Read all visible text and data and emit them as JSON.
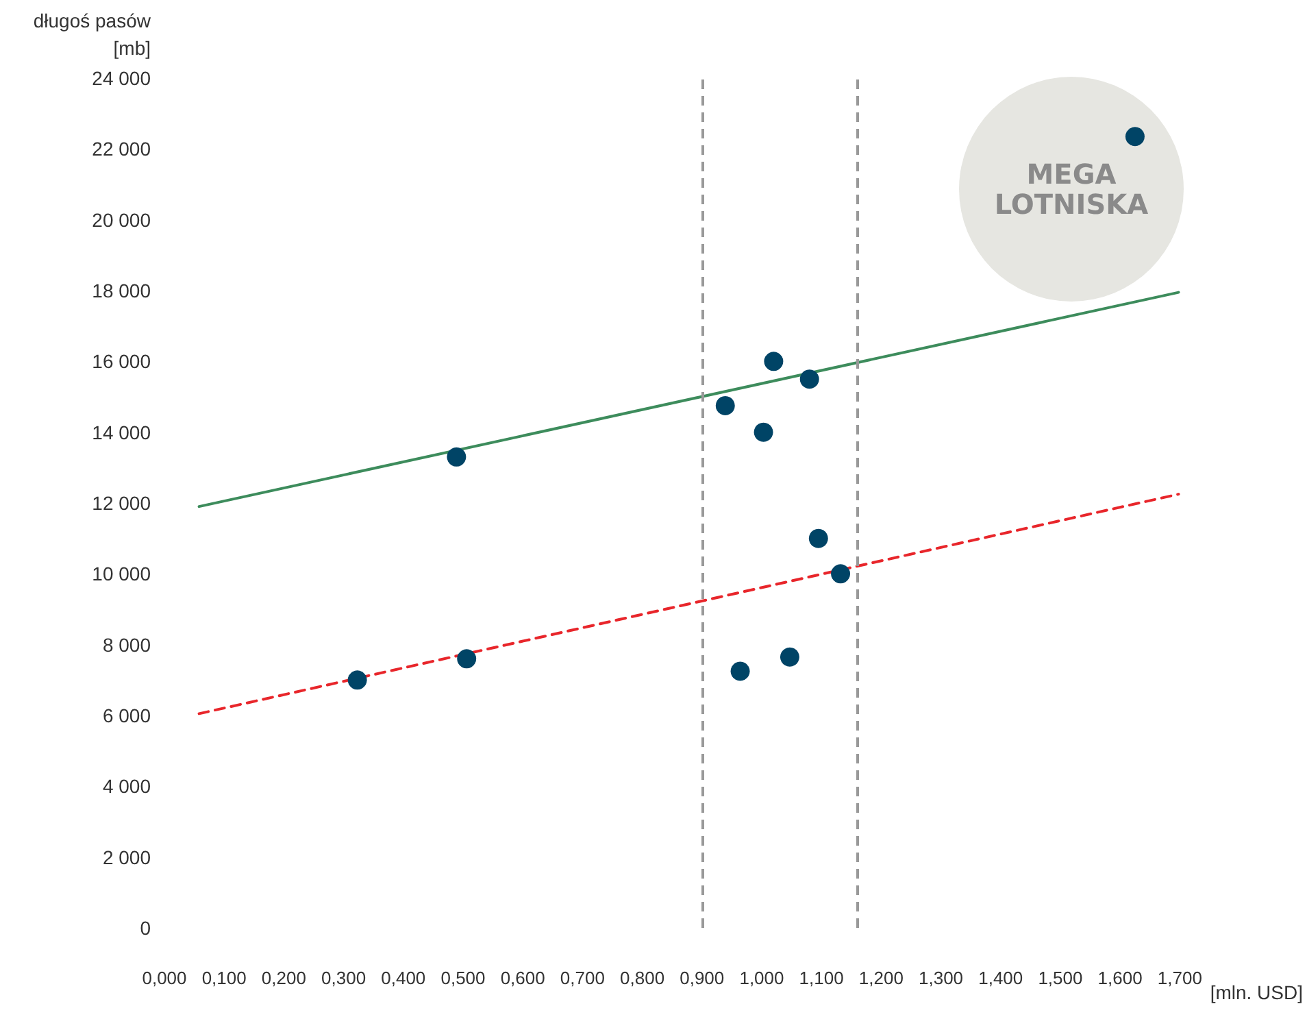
{
  "chart_data": {
    "type": "scatter",
    "xlabel": "[mln. USD]",
    "ylabel": "długoś pasów\n[mb]",
    "xlim": [
      0,
      1.7
    ],
    "ylim": [
      0,
      24000
    ],
    "xticks": [
      {
        "value": 0,
        "label": "0,000"
      },
      {
        "value": 0.1,
        "label": "0,100"
      },
      {
        "value": 0.2,
        "label": "0,200"
      },
      {
        "value": 0.3,
        "label": "0,300"
      },
      {
        "value": 0.4,
        "label": "0,400"
      },
      {
        "value": 0.5,
        "label": "0,500"
      },
      {
        "value": 0.6,
        "label": "0,600"
      },
      {
        "value": 0.7,
        "label": "0,700"
      },
      {
        "value": 0.8,
        "label": "0,800"
      },
      {
        "value": 0.9,
        "label": "0,900"
      },
      {
        "value": 1.0,
        "label": "1,000"
      },
      {
        "value": 1.1,
        "label": "1,100"
      },
      {
        "value": 1.2,
        "label": "1,200"
      },
      {
        "value": 1.3,
        "label": "1,300"
      },
      {
        "value": 1.4,
        "label": "1,400"
      },
      {
        "value": 1.5,
        "label": "1,500"
      },
      {
        "value": 1.6,
        "label": "1,600"
      },
      {
        "value": 1.7,
        "label": "1,700"
      }
    ],
    "yticks": [
      0,
      {
        "value": 2000,
        "label": "2 000"
      },
      {
        "value": 4000,
        "label": "4 000"
      },
      {
        "value": 6000,
        "label": "6 000"
      },
      {
        "value": 8000,
        "label": "8 000"
      },
      {
        "value": 10000,
        "label": "10 000"
      },
      {
        "value": 12000,
        "label": "12 000"
      },
      {
        "value": 14000,
        "label": "14 000"
      },
      {
        "value": 16000,
        "label": "16 000"
      },
      {
        "value": 18000,
        "label": "18 000"
      },
      {
        "value": 20000,
        "label": "20 000"
      },
      {
        "value": 22000,
        "label": "22 000"
      },
      {
        "value": 24000,
        "label": "24 000"
      }
    ],
    "grid": false,
    "marker": "circle",
    "series": [
      {
        "type": "line",
        "color": "#3d8c5c",
        "line_style": "solid",
        "marker": "none",
        "x": [
          0.058,
          1.698
        ],
        "values": [
          11900,
          17950
        ]
      },
      {
        "type": "line",
        "color": "#e8262b",
        "line_style": "dashed",
        "marker": "none",
        "x": [
          0.058,
          1.698
        ],
        "values": [
          6050,
          12250
        ]
      },
      {
        "color": "#004466",
        "x": [
          0.323,
          0.489,
          0.506,
          0.939,
          0.964,
          1.003,
          1.02,
          1.047,
          1.08,
          1.095,
          1.132,
          1.625
        ],
        "values": [
          7000,
          13300,
          7600,
          14750,
          7250,
          14000,
          16000,
          7650,
          15500,
          11000,
          10000,
          22350
        ]
      }
    ],
    "ref_lines": [
      {
        "axis": "x",
        "value": 0.9,
        "color": "#999999",
        "line_style": "dashed"
      },
      {
        "axis": "x",
        "value": 1.155,
        "color": "#999999",
        "line_style": "dashed"
      }
    ],
    "annotations": [
      "MEGA\nLOTNISKA"
    ]
  }
}
